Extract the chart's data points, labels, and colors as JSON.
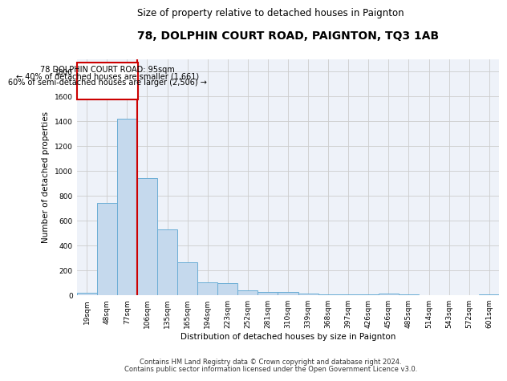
{
  "title": "78, DOLPHIN COURT ROAD, PAIGNTON, TQ3 1AB",
  "subtitle": "Size of property relative to detached houses in Paignton",
  "xlabel": "Distribution of detached houses by size in Paignton",
  "ylabel": "Number of detached properties",
  "footnote1": "Contains HM Land Registry data © Crown copyright and database right 2024.",
  "footnote2": "Contains public sector information licensed under the Open Government Licence v3.0.",
  "annotation_line1": "78 DOLPHIN COURT ROAD: 95sqm",
  "annotation_line2": "← 40% of detached houses are smaller (1,661)",
  "annotation_line3": "60% of semi-detached houses are larger (2,506) →",
  "bar_color": "#c5d9ed",
  "bar_edge_color": "#6aadd5",
  "grid_color": "#cccccc",
  "bg_color": "#eef2f9",
  "red_line_color": "#cc0000",
  "annotation_box_edge": "#cc0000",
  "annotation_box_face": "#ffffff",
  "categories": [
    "19sqm",
    "48sqm",
    "77sqm",
    "106sqm",
    "135sqm",
    "165sqm",
    "194sqm",
    "223sqm",
    "252sqm",
    "281sqm",
    "310sqm",
    "339sqm",
    "368sqm",
    "397sqm",
    "426sqm",
    "456sqm",
    "485sqm",
    "514sqm",
    "543sqm",
    "572sqm",
    "601sqm"
  ],
  "values": [
    20,
    740,
    1420,
    940,
    530,
    265,
    105,
    95,
    40,
    30,
    25,
    12,
    10,
    8,
    5,
    12,
    5,
    4,
    3,
    2,
    10
  ],
  "ylim": [
    0,
    1900
  ],
  "yticks": [
    0,
    200,
    400,
    600,
    800,
    1000,
    1200,
    1400,
    1600,
    1800
  ],
  "red_line_x": 2.5,
  "title_fontsize": 10,
  "subtitle_fontsize": 8.5,
  "axis_label_fontsize": 7.5,
  "ylabel_fontsize": 7.5,
  "tick_fontsize": 6.5,
  "annotation_fontsize": 7,
  "footnote_fontsize": 6
}
